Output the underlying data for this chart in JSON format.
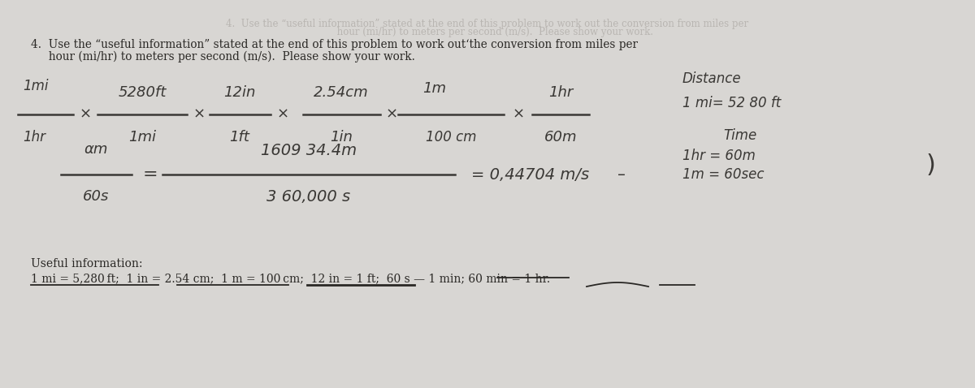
{
  "bg_color": "#d8d6d3",
  "fig_width": 12.0,
  "fig_height": 4.78,
  "dpi": 100,
  "question_line1": "4.  Use the “useful information” stated at the end of this problem to work out’the conversion from miles per",
  "question_line2": "     hour (mi/hr) to meters per second (m/s).  Please show your work.",
  "useful_info_label": "Useful information:",
  "useful_info_text": "1 mi = 5,280 ft; 1 in = 2.54 cm; 1 m = 100 cm; 12 in = 1 ft; 60 s — 1 min; 60 min = 1 hr.",
  "hand_color": "#3a3835",
  "print_color": "#2a2825",
  "faded_color": "#9a9590"
}
